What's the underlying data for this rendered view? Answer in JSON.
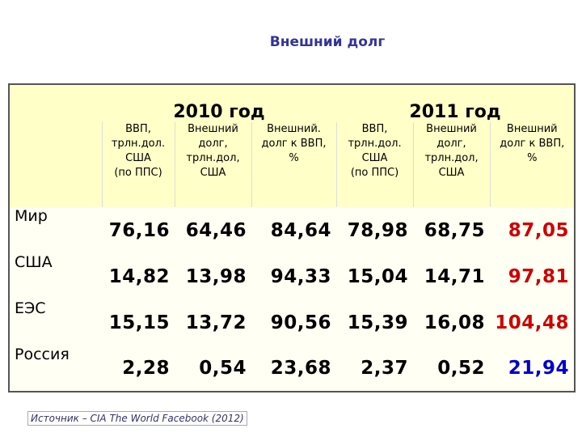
{
  "title": "Внешний долг",
  "table": {
    "groups": [
      "2010 год",
      "2011 год"
    ],
    "columns": [
      "ВВП,\nтрлн.дол.\nСША\n(по ППС)",
      "Внешний\nдолг,\nтрлн.дол,\nСША",
      "Внешний.\nдолг к ВВП,\n%",
      "ВВП,\nтрлн.дол.\nСША\n(по ППС)",
      "Внешний\nдолг,\nтрлн.дол,\nСША",
      "Внешний\nдолг к ВВП,\n%"
    ],
    "rows": [
      {
        "label": "Мир",
        "cells": [
          "76,16",
          "64,46",
          "84,64",
          "78,98",
          "68,75",
          "87,05"
        ]
      },
      {
        "label": "США",
        "cells": [
          "14,82",
          "13,98",
          "94,33",
          "15,04",
          "14,71",
          "97,81"
        ]
      },
      {
        "label": "ЕЭС",
        "cells": [
          "15,15",
          "13,72",
          "90,56",
          "15,39",
          "16,08",
          "104,48"
        ]
      },
      {
        "label": "Россия",
        "cells": [
          "2,28",
          "0,54",
          "23,68",
          "2,37",
          "0,52",
          "21,94"
        ]
      }
    ]
  },
  "source": "Источник – CIA The World Facebook (2012)"
}
